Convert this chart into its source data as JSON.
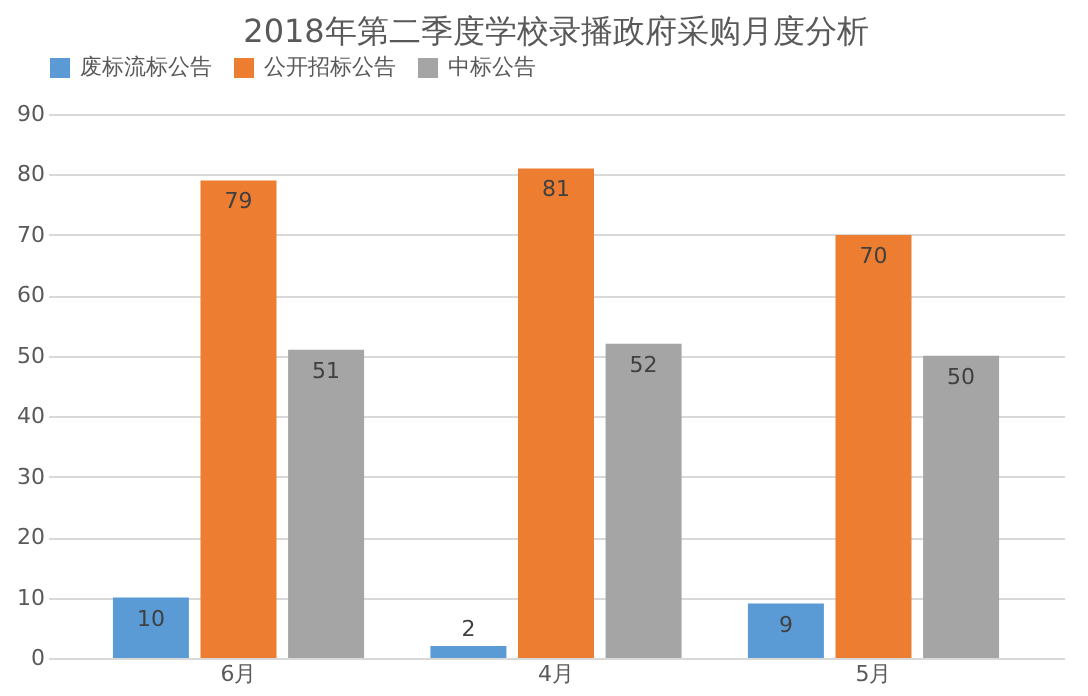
{
  "chart_data": {
    "type": "bar",
    "title": "2018年第二季度学校录播政府采购月度分析",
    "categories": [
      "6月",
      "4月",
      "5月"
    ],
    "series": [
      {
        "name": "废标流标公告",
        "color": "#5b9bd5",
        "values": [
          10,
          2,
          9
        ]
      },
      {
        "name": "公开招标公告",
        "color": "#ed7d31",
        "values": [
          79,
          81,
          70
        ]
      },
      {
        "name": "中标公告",
        "color": "#a5a5a5",
        "values": [
          51,
          52,
          50
        ]
      }
    ],
    "ylim": [
      0,
      90
    ],
    "yticks": [
      0,
      10,
      20,
      30,
      40,
      50,
      60,
      70,
      80,
      90
    ],
    "grid": "y",
    "legend": "top",
    "data_labels": true
  }
}
